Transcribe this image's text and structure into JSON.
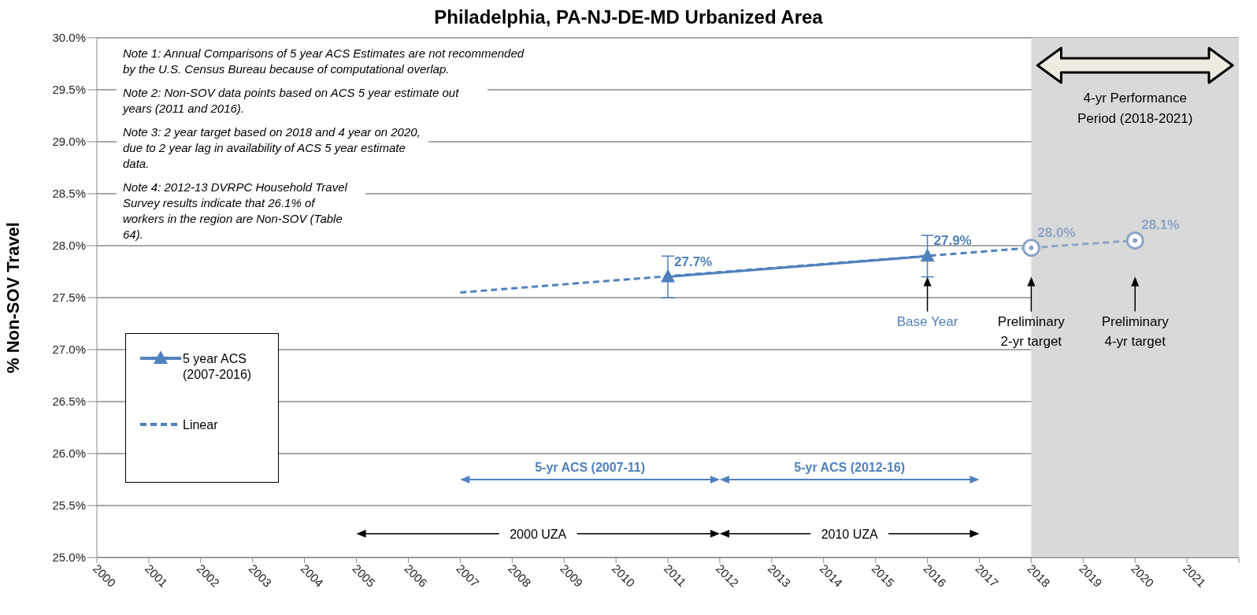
{
  "chart_data": {
    "type": "line",
    "title": "Philadelphia, PA-NJ-DE-MD Urbanized Area",
    "ylabel": "% Non-SOV Travel",
    "xlim": [
      2000,
      2022
    ],
    "xticks": [
      2000,
      2001,
      2002,
      2003,
      2004,
      2005,
      2006,
      2007,
      2008,
      2009,
      2010,
      2011,
      2012,
      2013,
      2014,
      2015,
      2016,
      2017,
      2018,
      2019,
      2020,
      2021,
      {
        "value": 2022,
        "label": null
      }
    ],
    "ylim": [
      25,
      30
    ],
    "yticks": [
      {
        "value": 25,
        "label": "25.0%"
      },
      {
        "value": 25.5,
        "label": "25.5%"
      },
      {
        "value": 26,
        "label": "26.0%"
      },
      {
        "value": 26.5,
        "label": "26.5%"
      },
      {
        "value": 27,
        "label": "27.0%"
      },
      {
        "value": 27.5,
        "label": "27.5%"
      },
      {
        "value": 28,
        "label": "28.0%"
      },
      {
        "value": 28.5,
        "label": "28.5%"
      },
      {
        "value": 29,
        "label": "29.0%"
      },
      {
        "value": 29.5,
        "label": "29.5%"
      },
      {
        "value": 30,
        "label": "30.0%"
      }
    ],
    "grid": "y",
    "legend": "left",
    "series": [
      {
        "name": "5 year ACS\n(2007-2016)",
        "color": "#4f81bd",
        "marker": "triangle",
        "line_style": "solid",
        "x": [
          2011,
          2016
        ],
        "values": [
          27.7,
          27.9
        ],
        "errors": [
          0.2,
          0.2
        ],
        "value_labels": [
          "27.7%",
          "27.9%"
        ]
      },
      {
        "name": "Linear",
        "color": "#4f81bd",
        "line_style": "dashed",
        "x": [
          2007,
          2018
        ],
        "values": [
          27.55,
          27.98
        ]
      },
      {
        "color": "#8ea4c8",
        "marker": "circle",
        "line_style": "dashed",
        "x": [
          2018,
          2020
        ],
        "values": [
          27.98,
          28.05
        ],
        "value_labels": [
          "28.0%",
          "28.1%"
        ]
      }
    ],
    "bands": [
      {
        "axis": "x",
        "from": 2018,
        "to": 2022,
        "label": "4-yr Performance\nPeriod (2018-2021)",
        "color": "#d9d9d9"
      }
    ],
    "annotations": [
      "Note 1: Annual Comparisons of 5 year ACS Estimates are not recommended by the U.S. Census Bureau because of computational overlap.",
      "Note 2: Non-SOV data points based on ACS 5 year estimate out years (2011 and 2016).",
      "Note 3: 2 year target based on 2018 and 4 year on 2020, due to 2 year lag in availability of ACS 5 year estimate data.",
      "Note 4: 2012-13 DVRPC Household Travel Survey results indicate that 26.1% of workers in the region are Non-SOV (Table 64).",
      {
        "text": "Base Year",
        "x": 2016,
        "y": 27.7
      },
      {
        "text": "Preliminary\n2-yr target",
        "x": 2018,
        "y": 27.7
      },
      "Preliminary\n4-yr target",
      "5-yr ACS (2007-11)",
      "5-yr ACS (2012-16)",
      "2000 UZA",
      "2010 UZA"
    ]
  }
}
